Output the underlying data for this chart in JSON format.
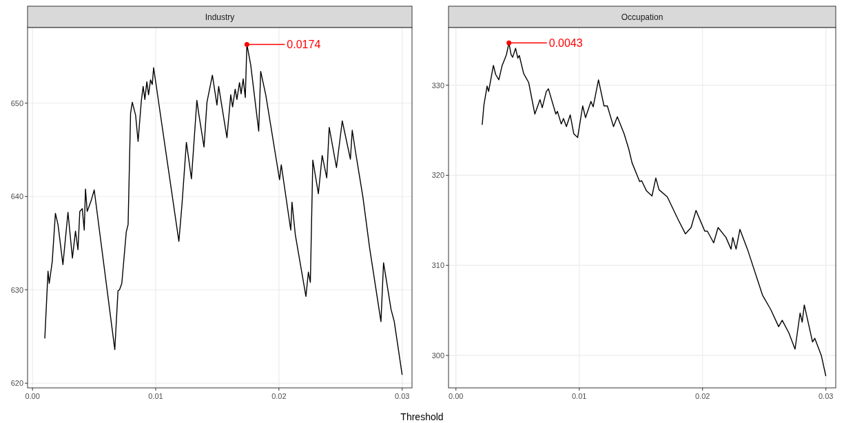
{
  "chart_data": [
    {
      "type": "line",
      "title": "Industry",
      "xlabel": "Threshold",
      "xlim": [
        -0.0004,
        0.0308
      ],
      "ylim": [
        619.5,
        658.1
      ],
      "xticks": [
        {
          "value": 0,
          "label": "0.00"
        },
        {
          "value": 0.01,
          "label": "0.01"
        },
        {
          "value": 0.02,
          "label": "0.02"
        },
        {
          "value": 0.03,
          "label": "0.03"
        }
      ],
      "yticks": [
        620,
        630,
        640,
        650
      ],
      "grid": true,
      "marker": "none",
      "line_style": "solid",
      "annotations": [
        {
          "text": "0.0174",
          "x": 0.0174,
          "y": 656.3
        }
      ],
      "series": [
        {
          "color": "#000000",
          "x": [
            0.001,
            0.00126,
            0.00136,
            0.0016,
            0.00186,
            0.00207,
            0.00247,
            0.00288,
            0.00324,
            0.00349,
            0.00369,
            0.00384,
            0.00404,
            0.0042,
            0.0043,
            0.00444,
            0.00477,
            0.00501,
            0.00668,
            0.00694,
            0.00706,
            0.00725,
            0.00761,
            0.00776,
            0.00796,
            0.0081,
            0.00837,
            0.00857,
            0.00883,
            0.00898,
            0.00912,
            0.00928,
            0.00942,
            0.00958,
            0.00972,
            0.00983,
            0.01188,
            0.01213,
            0.01249,
            0.0129,
            0.01334,
            0.01349,
            0.01392,
            0.01416,
            0.0146,
            0.01497,
            0.01511,
            0.01578,
            0.01609,
            0.01624,
            0.01645,
            0.01659,
            0.0168,
            0.01693,
            0.0171,
            0.01727,
            0.0174,
            0.01771,
            0.01836,
            0.01852,
            0.01893,
            0.02005,
            0.02019,
            0.02096,
            0.02106,
            0.02133,
            0.02219,
            0.02239,
            0.02255,
            0.02275,
            0.0232,
            0.02351,
            0.02388,
            0.02408,
            0.02467,
            0.02514,
            0.0258,
            0.02595,
            0.02619,
            0.02682,
            0.02737,
            0.02828,
            0.02849,
            0.0291,
            0.02936,
            0.03
          ],
          "values": [
            624.8,
            632.0,
            630.7,
            633.0,
            638.2,
            637.0,
            632.7,
            638.3,
            633.4,
            636.3,
            634.3,
            638.4,
            638.7,
            636.4,
            640.8,
            638.4,
            639.6,
            640.7,
            623.6,
            629.9,
            630.0,
            630.7,
            636.2,
            637.0,
            648.9,
            650.1,
            648.7,
            645.9,
            650.2,
            651.8,
            650.4,
            652.3,
            650.9,
            652.5,
            652.0,
            653.8,
            635.2,
            639.1,
            645.8,
            641.9,
            650.3,
            648.9,
            645.3,
            650.1,
            653.0,
            649.8,
            651.8,
            646.3,
            650.9,
            649.6,
            651.5,
            650.4,
            652.2,
            651.0,
            652.6,
            650.6,
            656.3,
            654.1,
            647.0,
            653.4,
            650.9,
            641.8,
            643.4,
            636.4,
            639.4,
            635.9,
            629.3,
            631.9,
            630.8,
            643.9,
            640.3,
            644.4,
            642.0,
            647.4,
            643.1,
            648.1,
            644.0,
            647.1,
            645.0,
            639.9,
            634.4,
            626.6,
            632.9,
            627.9,
            626.6,
            620.9
          ]
        }
      ]
    },
    {
      "type": "line",
      "title": "Occupation",
      "xlim": [
        -0.0006,
        0.0308
      ],
      "ylim": [
        296.4,
        336.4
      ],
      "xticks": [
        {
          "value": 0,
          "label": "0.00"
        },
        {
          "value": 0.01,
          "label": "0.01"
        },
        {
          "value": 0.02,
          "label": "0.02"
        },
        {
          "value": 0.03,
          "label": "0.03"
        }
      ],
      "yticks": [
        300,
        310,
        320,
        330
      ],
      "grid": true,
      "marker": "none",
      "line_style": "solid",
      "annotations": [
        {
          "text": "0.0043",
          "x": 0.0043,
          "y": 334.7
        }
      ],
      "series": [
        {
          "color": "#000000",
          "x": [
            0.00213,
            0.00227,
            0.00253,
            0.00265,
            0.00304,
            0.00322,
            0.00348,
            0.00375,
            0.00393,
            0.0041,
            0.0043,
            0.00447,
            0.0046,
            0.00484,
            0.00502,
            0.00514,
            0.00549,
            0.0059,
            0.0064,
            0.00682,
            0.007,
            0.00733,
            0.0075,
            0.0081,
            0.00823,
            0.00854,
            0.00872,
            0.00896,
            0.00927,
            0.00956,
            0.00987,
            0.01028,
            0.01051,
            0.01095,
            0.01113,
            0.01156,
            0.01201,
            0.01228,
            0.01278,
            0.01309,
            0.01364,
            0.01402,
            0.01428,
            0.0149,
            0.01506,
            0.01544,
            0.0159,
            0.01621,
            0.01647,
            0.01714,
            0.01805,
            0.01861,
            0.01907,
            0.01947,
            0.02018,
            0.02039,
            0.0209,
            0.02126,
            0.0219,
            0.02231,
            0.02245,
            0.02272,
            0.02303,
            0.02364,
            0.02486,
            0.02553,
            0.02617,
            0.02646,
            0.027,
            0.0275,
            0.02791,
            0.02808,
            0.02825,
            0.02892,
            0.0291,
            0.02963,
            0.03
          ],
          "values": [
            325.6,
            327.8,
            329.9,
            329.3,
            332.2,
            331.2,
            330.6,
            332.2,
            332.8,
            333.4,
            334.7,
            333.4,
            333.1,
            334.1,
            333.0,
            333.3,
            331.3,
            330.3,
            326.8,
            328.4,
            327.5,
            329.3,
            329.6,
            326.8,
            327.1,
            325.7,
            326.3,
            325.4,
            326.7,
            324.6,
            324.2,
            327.7,
            326.4,
            328.2,
            327.6,
            330.6,
            327.7,
            327.7,
            325.4,
            326.5,
            324.6,
            322.9,
            321.4,
            319.3,
            319.4,
            318.3,
            317.7,
            319.7,
            318.4,
            317.6,
            315.0,
            313.5,
            314.2,
            316.1,
            313.8,
            313.8,
            312.5,
            314.2,
            313.1,
            311.8,
            313.1,
            311.8,
            314.0,
            311.8,
            306.7,
            305.1,
            303.2,
            303.9,
            302.5,
            300.7,
            304.7,
            303.7,
            305.6,
            301.5,
            301.9,
            300.0,
            297.7
          ]
        }
      ]
    }
  ]
}
